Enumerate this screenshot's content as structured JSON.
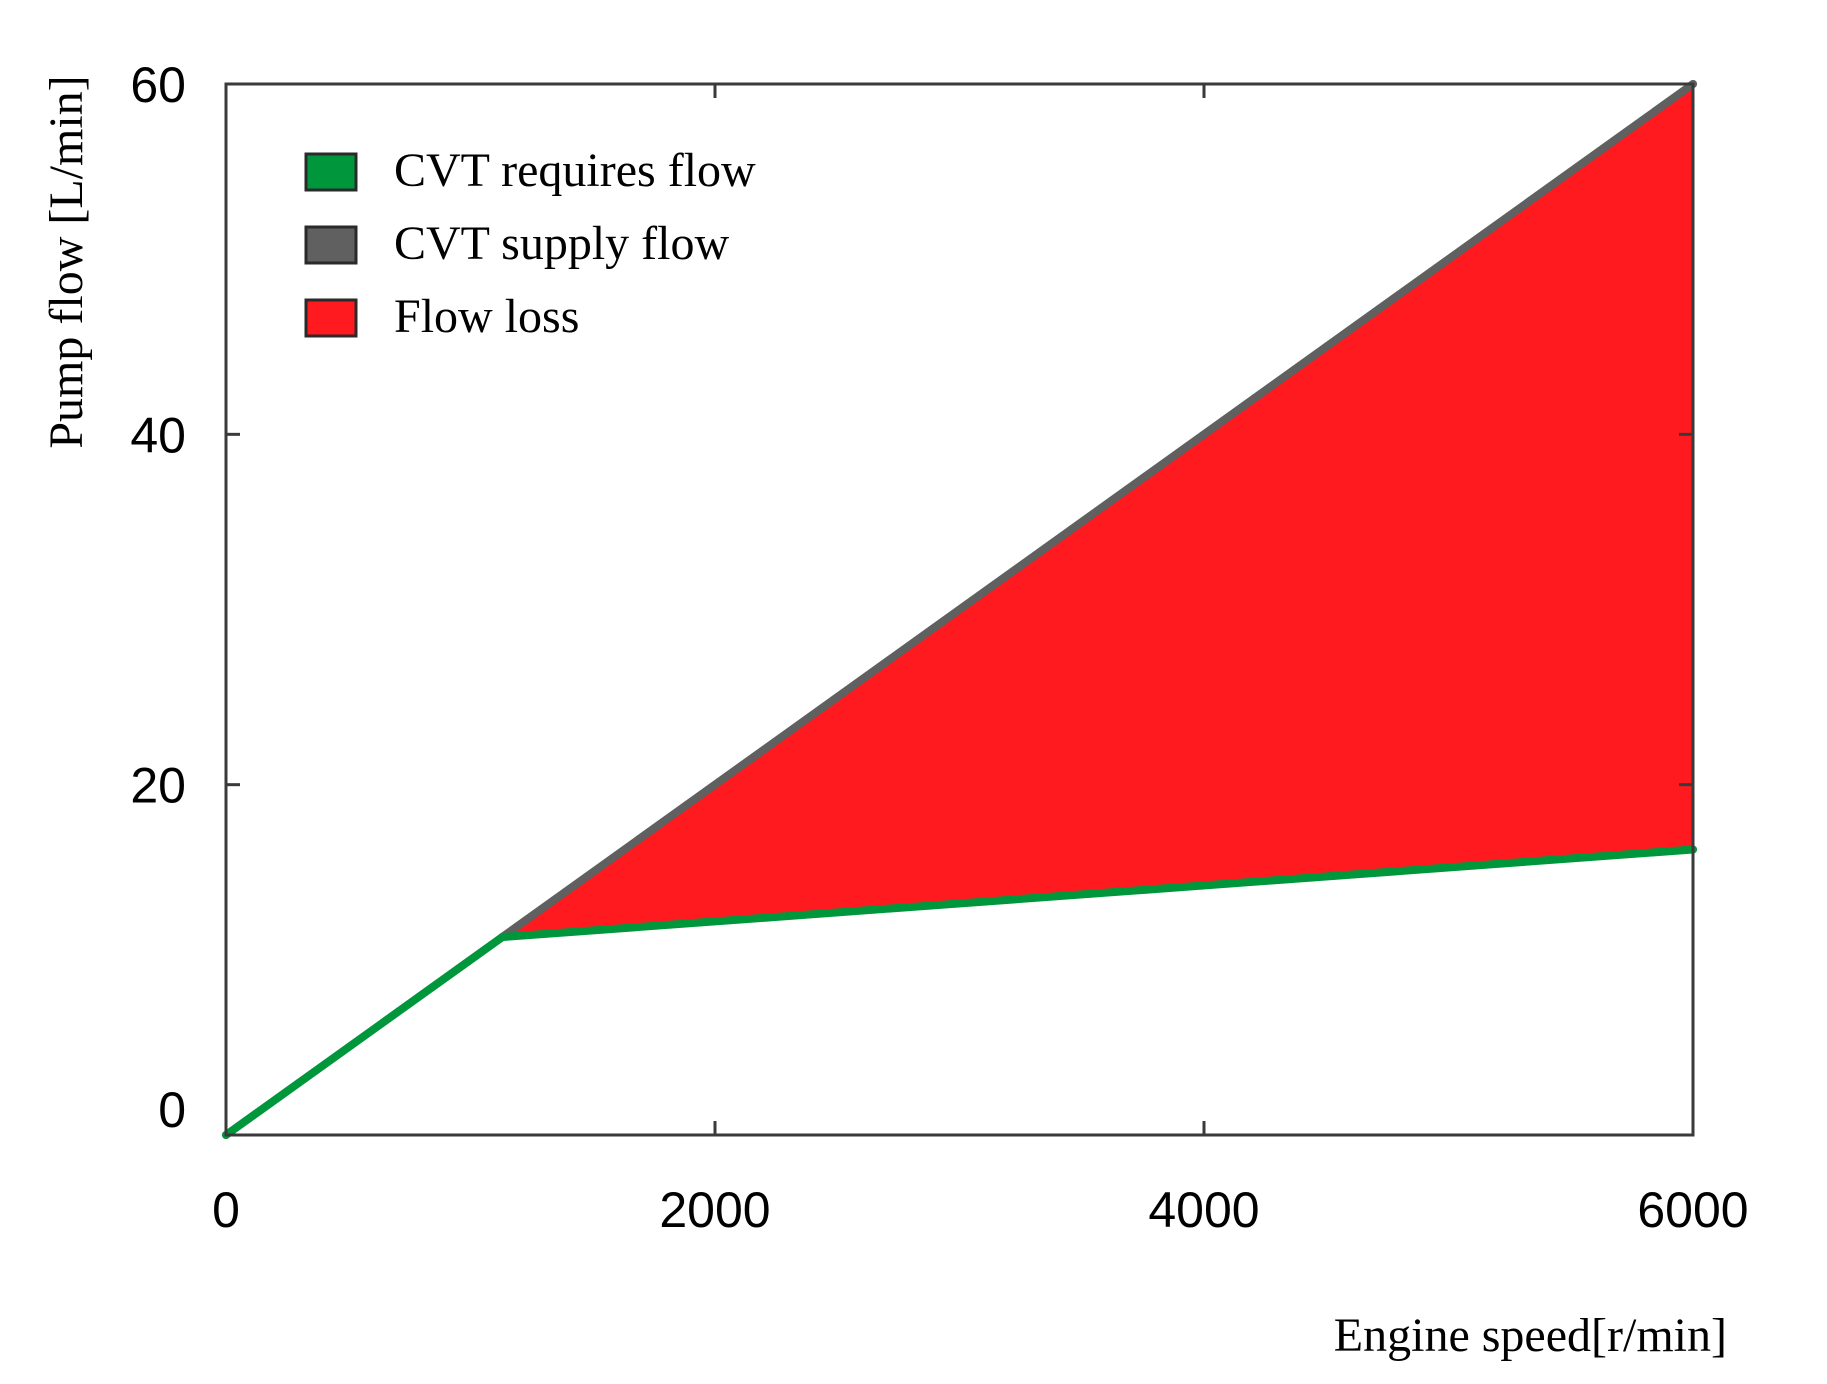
{
  "chart_data": {
    "type": "area",
    "title": "",
    "xlabel": "Engine speed[r/min]",
    "ylabel": "Pump flow [L/min]",
    "xlim": [
      0,
      6000
    ],
    "ylim": [
      0,
      60
    ],
    "x_ticks": [
      0,
      2000,
      4000,
      6000
    ],
    "y_ticks": [
      0,
      20,
      40,
      60
    ],
    "grid": false,
    "legend_position": "top-left",
    "series": [
      {
        "name": "CVT requires flow",
        "kind": "line",
        "color": "#00963c",
        "x": [
          0,
          1130,
          6000
        ],
        "y": [
          0,
          11.3,
          16.3
        ]
      },
      {
        "name": "CVT supply flow",
        "kind": "line",
        "color": "#606060",
        "x": [
          1130,
          6000
        ],
        "y": [
          11.3,
          60
        ]
      },
      {
        "name": "Flow loss",
        "kind": "area",
        "color": "#ff1a1f",
        "x": [
          1130,
          6000
        ],
        "y_lower": [
          11.3,
          16.3
        ],
        "y_upper": [
          11.3,
          60
        ]
      }
    ]
  }
}
